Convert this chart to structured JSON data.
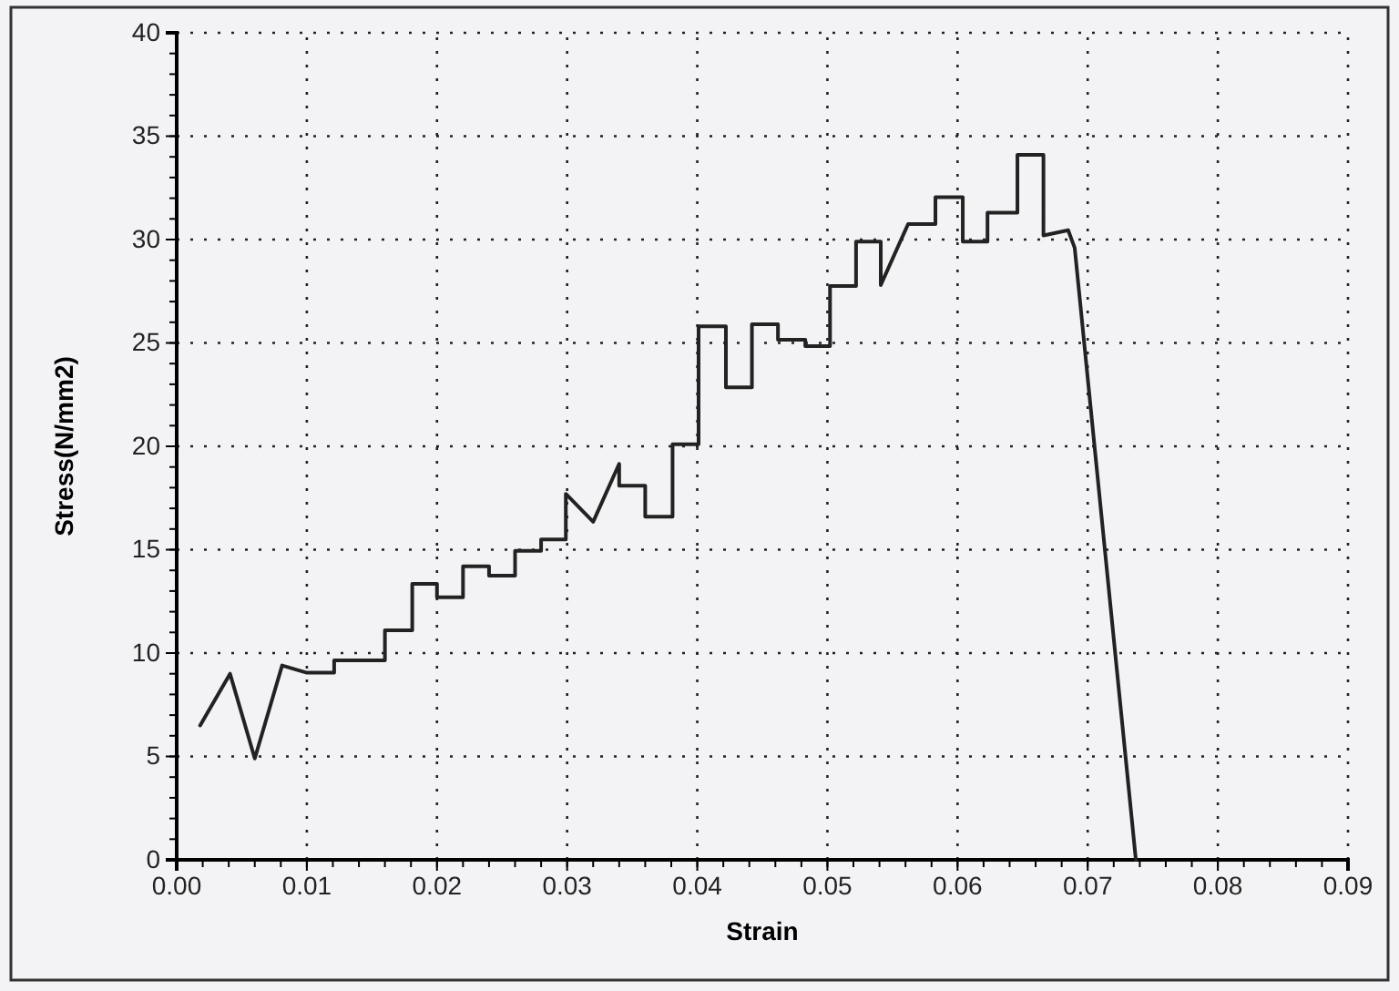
{
  "chart_data": {
    "type": "line",
    "xlabel": "Strain",
    "ylabel": "Stress(N/mm2)",
    "xlim": [
      0,
      0.09
    ],
    "ylim": [
      0,
      40
    ],
    "xticks": [
      {
        "value": 0,
        "label": "0.00"
      },
      {
        "value": 0.01,
        "label": "0.01"
      },
      {
        "value": 0.02,
        "label": "0.02"
      },
      {
        "value": 0.03,
        "label": "0.03"
      },
      {
        "value": 0.04,
        "label": "0.04"
      },
      {
        "value": 0.05,
        "label": "0.05"
      },
      {
        "value": 0.06,
        "label": "0.06"
      },
      {
        "value": 0.07,
        "label": "0.07"
      },
      {
        "value": 0.08,
        "label": "0.08"
      },
      {
        "value": 0.09,
        "label": "0.09"
      }
    ],
    "yticks": [
      0,
      5,
      10,
      15,
      20,
      25,
      30,
      35,
      40
    ],
    "grid": true,
    "line_style": "solid",
    "marker": "none",
    "series": [
      {
        "color": "#222222",
        "x": [
          0.0018,
          0.0041,
          0.006,
          0.0081,
          0.01,
          0.0121,
          0.0121,
          0.016,
          0.016,
          0.0181,
          0.0181,
          0.02,
          0.02,
          0.022,
          0.022,
          0.024,
          0.024,
          0.026,
          0.026,
          0.028,
          0.028,
          0.0299,
          0.0299,
          0.032,
          0.034,
          0.034,
          0.036,
          0.036,
          0.0381,
          0.0381,
          0.0401,
          0.0401,
          0.0422,
          0.0422,
          0.0442,
          0.0442,
          0.0462,
          0.0462,
          0.0483,
          0.0483,
          0.0502,
          0.0502,
          0.0522,
          0.0522,
          0.0541,
          0.0541,
          0.0562,
          0.0583,
          0.0583,
          0.0604,
          0.0604,
          0.0623,
          0.0623,
          0.0646,
          0.0646,
          0.0666,
          0.0666,
          0.0685,
          0.069,
          0.0737
        ],
        "values": [
          6.5,
          9.0,
          4.9,
          9.4,
          9.05,
          9.05,
          9.65,
          9.65,
          11.1,
          11.1,
          13.35,
          13.35,
          12.7,
          12.7,
          14.2,
          14.2,
          13.75,
          13.75,
          14.95,
          14.95,
          15.5,
          15.5,
          17.7,
          16.35,
          19.15,
          18.1,
          18.1,
          16.6,
          16.6,
          20.1,
          20.1,
          25.8,
          25.8,
          22.85,
          22.85,
          25.9,
          25.9,
          25.15,
          25.15,
          24.85,
          24.85,
          27.75,
          27.75,
          29.9,
          29.9,
          27.8,
          30.75,
          30.75,
          32.05,
          32.05,
          29.9,
          29.9,
          31.3,
          31.3,
          34.1,
          34.1,
          30.2,
          30.45,
          29.6,
          0
        ]
      }
    ]
  }
}
